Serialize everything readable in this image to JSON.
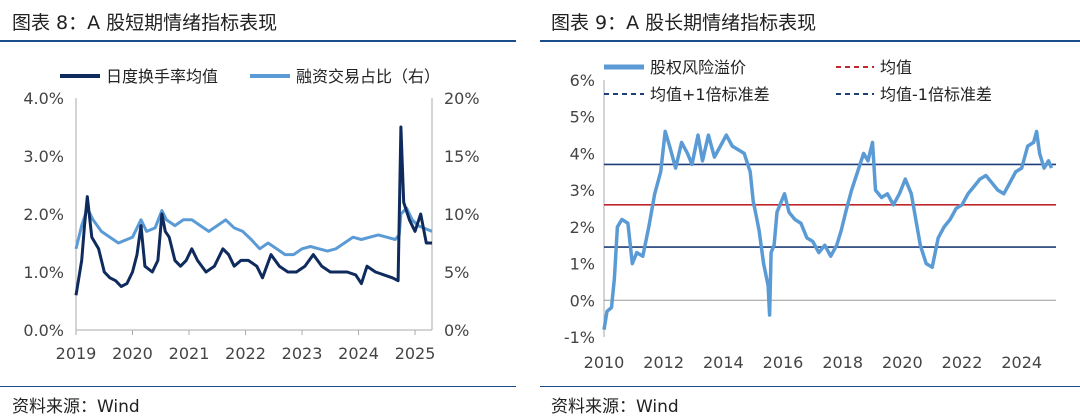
{
  "left": {
    "title": "图表 8：A 股短期情绪指标表现",
    "source": "资料来源：Wind"
  },
  "right": {
    "title": "图表 9：A 股长期情绪指标表现",
    "source": "资料来源：Wind"
  },
  "colors": {
    "dark": "#0f2a5c",
    "light": "#5b9bd5",
    "mean": "#c0272d",
    "band": "#1f3f7a",
    "rule": "#1a4d8c"
  },
  "chart_data": [
    {
      "type": "line",
      "x_ticks": [
        "2019",
        "2020",
        "2021",
        "2022",
        "2023",
        "2024",
        "2025"
      ],
      "y_left": {
        "ticks": [
          "0.0%",
          "1.0%",
          "2.0%",
          "3.0%",
          "4.0%"
        ],
        "ylim": [
          0,
          4
        ]
      },
      "y_right": {
        "ticks": [
          "0%",
          "5%",
          "10%",
          "15%",
          "20%"
        ],
        "ylim": [
          0,
          20
        ]
      },
      "legend_placement": "top",
      "series": [
        {
          "name": "日度换手率均值",
          "axis": "left",
          "color": "#0f2a5c",
          "points": [
            [
              2019.0,
              0.6
            ],
            [
              2019.1,
              1.2
            ],
            [
              2019.15,
              1.8
            ],
            [
              2019.2,
              2.3
            ],
            [
              2019.28,
              1.6
            ],
            [
              2019.4,
              1.4
            ],
            [
              2019.5,
              1.0
            ],
            [
              2019.6,
              0.9
            ],
            [
              2019.7,
              0.85
            ],
            [
              2019.8,
              0.75
            ],
            [
              2019.9,
              0.8
            ],
            [
              2020.0,
              1.0
            ],
            [
              2020.08,
              1.3
            ],
            [
              2020.15,
              1.8
            ],
            [
              2020.22,
              1.1
            ],
            [
              2020.35,
              1.0
            ],
            [
              2020.45,
              1.2
            ],
            [
              2020.52,
              2.0
            ],
            [
              2020.58,
              1.7
            ],
            [
              2020.65,
              1.6
            ],
            [
              2020.75,
              1.2
            ],
            [
              2020.85,
              1.1
            ],
            [
              2020.95,
              1.2
            ],
            [
              2021.05,
              1.4
            ],
            [
              2021.15,
              1.2
            ],
            [
              2021.3,
              1.0
            ],
            [
              2021.45,
              1.1
            ],
            [
              2021.6,
              1.4
            ],
            [
              2021.7,
              1.3
            ],
            [
              2021.8,
              1.1
            ],
            [
              2021.92,
              1.2
            ],
            [
              2022.05,
              1.2
            ],
            [
              2022.2,
              1.1
            ],
            [
              2022.3,
              0.9
            ],
            [
              2022.45,
              1.3
            ],
            [
              2022.6,
              1.1
            ],
            [
              2022.75,
              1.0
            ],
            [
              2022.9,
              1.0
            ],
            [
              2023.05,
              1.1
            ],
            [
              2023.2,
              1.3
            ],
            [
              2023.35,
              1.1
            ],
            [
              2023.5,
              1.0
            ],
            [
              2023.65,
              1.0
            ],
            [
              2023.8,
              1.0
            ],
            [
              2023.95,
              0.95
            ],
            [
              2024.05,
              0.8
            ],
            [
              2024.15,
              1.1
            ],
            [
              2024.3,
              1.0
            ],
            [
              2024.45,
              0.95
            ],
            [
              2024.6,
              0.9
            ],
            [
              2024.7,
              0.85
            ],
            [
              2024.75,
              3.5
            ],
            [
              2024.8,
              2.2
            ],
            [
              2024.9,
              1.9
            ],
            [
              2025.0,
              1.7
            ],
            [
              2025.1,
              2.0
            ],
            [
              2025.2,
              1.5
            ],
            [
              2025.3,
              1.5
            ]
          ]
        },
        {
          "name": "融资交易占比（右）",
          "axis": "right",
          "color": "#5b9bd5",
          "points": [
            [
              2019.0,
              7.0
            ],
            [
              2019.1,
              9.0
            ],
            [
              2019.2,
              10.5
            ],
            [
              2019.3,
              9.5
            ],
            [
              2019.45,
              8.5
            ],
            [
              2019.6,
              8.0
            ],
            [
              2019.75,
              7.5
            ],
            [
              2019.9,
              7.8
            ],
            [
              2020.0,
              8.0
            ],
            [
              2020.15,
              9.5
            ],
            [
              2020.25,
              8.5
            ],
            [
              2020.4,
              8.8
            ],
            [
              2020.52,
              10.3
            ],
            [
              2020.6,
              9.5
            ],
            [
              2020.75,
              9.0
            ],
            [
              2020.9,
              9.5
            ],
            [
              2021.05,
              9.5
            ],
            [
              2021.2,
              9.0
            ],
            [
              2021.35,
              8.5
            ],
            [
              2021.5,
              9.0
            ],
            [
              2021.65,
              9.5
            ],
            [
              2021.8,
              8.8
            ],
            [
              2021.95,
              8.5
            ],
            [
              2022.1,
              7.8
            ],
            [
              2022.25,
              7.0
            ],
            [
              2022.4,
              7.5
            ],
            [
              2022.55,
              7.0
            ],
            [
              2022.7,
              6.5
            ],
            [
              2022.85,
              6.5
            ],
            [
              2023.0,
              7.0
            ],
            [
              2023.15,
              7.2
            ],
            [
              2023.3,
              7.0
            ],
            [
              2023.45,
              6.8
            ],
            [
              2023.6,
              7.0
            ],
            [
              2023.75,
              7.5
            ],
            [
              2023.9,
              8.0
            ],
            [
              2024.05,
              7.8
            ],
            [
              2024.2,
              8.0
            ],
            [
              2024.35,
              8.2
            ],
            [
              2024.5,
              8.0
            ],
            [
              2024.65,
              7.8
            ],
            [
              2024.72,
              8.2
            ],
            [
              2024.75,
              10.0
            ],
            [
              2024.85,
              10.5
            ],
            [
              2024.95,
              9.5
            ],
            [
              2025.05,
              9.0
            ],
            [
              2025.15,
              8.8
            ],
            [
              2025.3,
              8.5
            ]
          ]
        }
      ]
    },
    {
      "type": "line",
      "x_ticks": [
        "2010",
        "2012",
        "2014",
        "2016",
        "2018",
        "2020",
        "2022",
        "2024"
      ],
      "y_ticks": [
        "-1%",
        "0%",
        "1%",
        "2%",
        "3%",
        "4%",
        "5%",
        "6%"
      ],
      "ylim": [
        -1,
        6
      ],
      "legend_placement": "top",
      "mean": 2.6,
      "upper": 3.7,
      "lower": 1.45,
      "legend": {
        "main": "股权风险溢价",
        "mean": "均值",
        "upper": "均值+1倍标准差",
        "lower": "均值-1倍标准差"
      },
      "series": [
        {
          "name": "股权风险溢价",
          "color": "#5b9bd5",
          "points": [
            [
              2010.0,
              -0.8
            ],
            [
              2010.1,
              -0.3
            ],
            [
              2010.25,
              -0.2
            ],
            [
              2010.35,
              0.6
            ],
            [
              2010.45,
              2.0
            ],
            [
              2010.6,
              2.2
            ],
            [
              2010.8,
              2.1
            ],
            [
              2010.95,
              1.0
            ],
            [
              2011.1,
              1.3
            ],
            [
              2011.3,
              1.2
            ],
            [
              2011.5,
              2.0
            ],
            [
              2011.7,
              2.9
            ],
            [
              2011.9,
              3.5
            ],
            [
              2012.05,
              4.6
            ],
            [
              2012.2,
              4.2
            ],
            [
              2012.4,
              3.6
            ],
            [
              2012.6,
              4.3
            ],
            [
              2012.8,
              4.0
            ],
            [
              2012.95,
              3.7
            ],
            [
              2013.15,
              4.5
            ],
            [
              2013.3,
              3.8
            ],
            [
              2013.5,
              4.5
            ],
            [
              2013.7,
              3.9
            ],
            [
              2013.9,
              4.2
            ],
            [
              2014.1,
              4.5
            ],
            [
              2014.3,
              4.2
            ],
            [
              2014.5,
              4.1
            ],
            [
              2014.7,
              4.0
            ],
            [
              2014.9,
              3.5
            ],
            [
              2015.0,
              2.7
            ],
            [
              2015.1,
              2.3
            ],
            [
              2015.2,
              1.9
            ],
            [
              2015.35,
              1.0
            ],
            [
              2015.5,
              0.4
            ],
            [
              2015.55,
              -0.4
            ],
            [
              2015.6,
              1.3
            ],
            [
              2015.7,
              1.5
            ],
            [
              2015.8,
              2.4
            ],
            [
              2015.9,
              2.6
            ],
            [
              2016.05,
              2.9
            ],
            [
              2016.2,
              2.4
            ],
            [
              2016.4,
              2.2
            ],
            [
              2016.6,
              2.1
            ],
            [
              2016.8,
              1.7
            ],
            [
              2017.0,
              1.6
            ],
            [
              2017.2,
              1.3
            ],
            [
              2017.4,
              1.5
            ],
            [
              2017.6,
              1.2
            ],
            [
              2017.8,
              1.5
            ],
            [
              2017.95,
              1.9
            ],
            [
              2018.1,
              2.4
            ],
            [
              2018.3,
              3.0
            ],
            [
              2018.5,
              3.5
            ],
            [
              2018.7,
              4.0
            ],
            [
              2018.85,
              3.8
            ],
            [
              2019.0,
              4.3
            ],
            [
              2019.1,
              3.0
            ],
            [
              2019.3,
              2.8
            ],
            [
              2019.5,
              2.9
            ],
            [
              2019.7,
              2.6
            ],
            [
              2019.9,
              2.9
            ],
            [
              2020.1,
              3.3
            ],
            [
              2020.3,
              2.9
            ],
            [
              2020.45,
              2.2
            ],
            [
              2020.6,
              1.5
            ],
            [
              2020.8,
              1.0
            ],
            [
              2021.0,
              0.9
            ],
            [
              2021.2,
              1.7
            ],
            [
              2021.4,
              2.0
            ],
            [
              2021.6,
              2.2
            ],
            [
              2021.8,
              2.5
            ],
            [
              2022.0,
              2.6
            ],
            [
              2022.2,
              2.9
            ],
            [
              2022.4,
              3.1
            ],
            [
              2022.6,
              3.3
            ],
            [
              2022.8,
              3.4
            ],
            [
              2023.0,
              3.2
            ],
            [
              2023.2,
              3.0
            ],
            [
              2023.4,
              2.9
            ],
            [
              2023.6,
              3.2
            ],
            [
              2023.8,
              3.5
            ],
            [
              2024.0,
              3.6
            ],
            [
              2024.2,
              4.2
            ],
            [
              2024.4,
              4.3
            ],
            [
              2024.5,
              4.6
            ],
            [
              2024.6,
              4.0
            ],
            [
              2024.75,
              3.6
            ],
            [
              2024.9,
              3.8
            ],
            [
              2025.0,
              3.6
            ]
          ]
        }
      ]
    }
  ]
}
